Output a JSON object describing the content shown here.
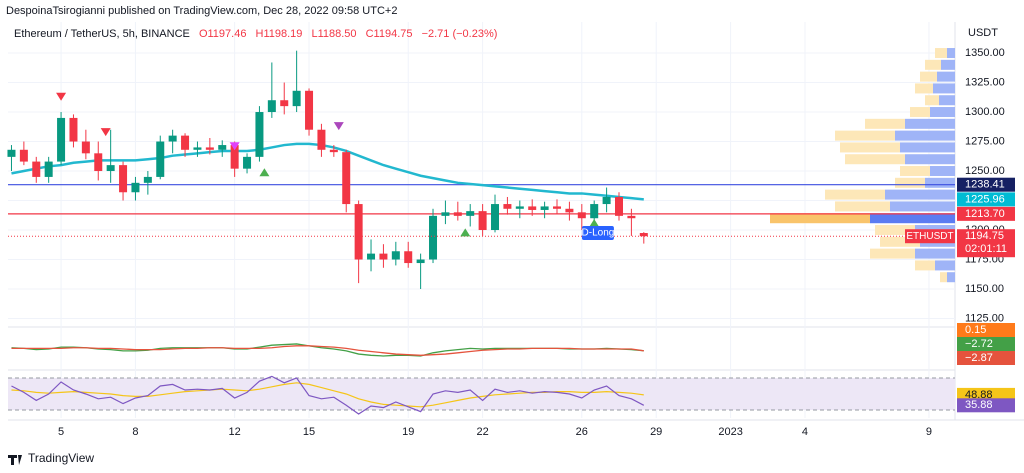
{
  "header": {
    "publisher": "DespoinaTsirogianni published on TradingView.com, Dec 28, 2022 09:58 UTC+2",
    "symbol": "Ethereum / TetherUS, 5h, BINANCE",
    "ohlc": [
      "O1197.46",
      "H1198.19",
      "L1188.50",
      "C1194.75",
      "−2.71 (−0.23%)"
    ],
    "currency": "USDT"
  },
  "footer": "TradingView",
  "chart_data": [
    {
      "type": "candlestick",
      "x": [
        3,
        3.5,
        4,
        4.5,
        5,
        5.5,
        6,
        6.5,
        7,
        7.5,
        8,
        8.5,
        9,
        9.5,
        10,
        10.5,
        11,
        11.5,
        12,
        12.5,
        13,
        13.5,
        14,
        14.5,
        15,
        15.5,
        16,
        16.5,
        17,
        17.5,
        18,
        18.5,
        19,
        19.5,
        20,
        20.5,
        21,
        21.5,
        22,
        22.5,
        23,
        23.5,
        24,
        24.5,
        25,
        25.5,
        26,
        26.5,
        27,
        27.5,
        28,
        28.5
      ],
      "open": [
        1262,
        1268,
        1258,
        1245,
        1258,
        1295,
        1275,
        1265,
        1250,
        1255,
        1232,
        1240,
        1245,
        1275,
        1280,
        1268,
        1270,
        1268,
        1272,
        1252,
        1262,
        1300,
        1310,
        1305,
        1318,
        1285,
        1268,
        1266,
        1222,
        1175,
        1180,
        1175,
        1182,
        1172,
        1175,
        1212,
        1215,
        1212,
        1216,
        1200,
        1222,
        1218,
        1220,
        1217,
        1220,
        1218,
        1215,
        1210,
        1222,
        1228,
        1212,
        1197.46
      ],
      "high": [
        1272,
        1275,
        1262,
        1262,
        1300,
        1298,
        1285,
        1275,
        1285,
        1258,
        1245,
        1250,
        1280,
        1285,
        1282,
        1275,
        1278,
        1276,
        1275,
        1265,
        1305,
        1342,
        1325,
        1352,
        1320,
        1290,
        1272,
        1268,
        1225,
        1192,
        1188,
        1190,
        1190,
        1180,
        1218,
        1225,
        1224,
        1222,
        1222,
        1230,
        1228,
        1225,
        1226,
        1224,
        1226,
        1224,
        1222,
        1225,
        1236,
        1232,
        1218,
        1198.19
      ],
      "low": [
        1250,
        1255,
        1240,
        1240,
        1255,
        1270,
        1260,
        1242,
        1240,
        1225,
        1225,
        1230,
        1243,
        1265,
        1262,
        1262,
        1264,
        1262,
        1245,
        1248,
        1258,
        1295,
        1298,
        1300,
        1280,
        1262,
        1262,
        1215,
        1155,
        1165,
        1168,
        1170,
        1168,
        1150,
        1172,
        1205,
        1208,
        1203,
        1195,
        1198,
        1213,
        1210,
        1212,
        1210,
        1214,
        1208,
        1200,
        1205,
        1215,
        1208,
        1195,
        1188.5
      ],
      "close": [
        1268,
        1258,
        1245,
        1258,
        1295,
        1275,
        1265,
        1250,
        1255,
        1232,
        1240,
        1245,
        1275,
        1280,
        1268,
        1270,
        1268,
        1272,
        1252,
        1262,
        1300,
        1310,
        1305,
        1318,
        1285,
        1268,
        1266,
        1222,
        1175,
        1180,
        1175,
        1182,
        1172,
        1175,
        1212,
        1215,
        1212,
        1216,
        1200,
        1222,
        1218,
        1220,
        1217,
        1220,
        1218,
        1215,
        1210,
        1222,
        1228,
        1212,
        1210,
        1194.75
      ],
      "up_color": "#089981",
      "down_color": "#f23645",
      "ema": {
        "color": "#22b8cf",
        "tag_color": "#00bcd4",
        "values": [
          1248,
          1250,
          1252,
          1254,
          1255,
          1257,
          1258,
          1259,
          1259,
          1259,
          1259,
          1260,
          1261,
          1263,
          1264,
          1265,
          1266,
          1267,
          1267,
          1267,
          1268,
          1270,
          1272,
          1273,
          1273,
          1272,
          1270,
          1267,
          1263,
          1259,
          1255,
          1252,
          1249,
          1246,
          1244,
          1242,
          1240,
          1239,
          1238,
          1237,
          1236,
          1235,
          1234,
          1233,
          1232,
          1231,
          1231,
          1230,
          1229,
          1228,
          1227,
          1225.96
        ]
      },
      "xlim": [
        2.86,
        41.05
      ],
      "xticks": [
        5,
        8,
        12,
        15,
        19,
        22,
        26,
        29,
        {
          "value": 32,
          "label": "2023"
        },
        {
          "value": 35,
          "label": "4"
        },
        {
          "value": 40,
          "label": "9"
        }
      ],
      "ylim": [
        1119.5,
        1376.3
      ],
      "yticks": [
        {
          "value": 1125,
          "label": "1125.00"
        },
        {
          "value": 1150,
          "label": "1150.00"
        },
        {
          "value": 1175,
          "label": "1175.00"
        },
        {
          "value": 1200,
          "label": "1200.00"
        },
        {
          "value": 1225,
          "label": "1225.00"
        },
        {
          "value": 1250,
          "label": "1250.00"
        },
        {
          "value": 1275,
          "label": "1275.00"
        },
        {
          "value": 1300,
          "label": "1300.00"
        },
        {
          "value": 1325,
          "label": "1325.00"
        },
        {
          "value": 1350,
          "label": "1350.00"
        }
      ],
      "grid": true,
      "levels": [
        {
          "value": 1238.41,
          "color": "#3d4fe0",
          "tag_color": "#152063"
        },
        {
          "value": 1213.7,
          "label": "1213.70",
          "color": "#f23645",
          "tag_color": "#f23645"
        }
      ],
      "last_price": {
        "symbol": "ETHUSDT",
        "countdown": "02:01:11",
        "color": "#f23645"
      },
      "signals": [
        {
          "x": 5,
          "y": 1313,
          "direction": "down",
          "color": "#f23645"
        },
        {
          "x": 6.8,
          "y": 1283,
          "direction": "down",
          "color": "#f23645"
        },
        {
          "x": 12,
          "y": 1271,
          "direction": "down",
          "color": "#e040fb"
        },
        {
          "x": 13.2,
          "y": 1249,
          "direction": "up",
          "color": "#4caf50"
        },
        {
          "x": 16.2,
          "y": 1288,
          "direction": "down",
          "color": "#ab47bc"
        },
        {
          "x": 21.3,
          "y": 1198,
          "direction": "up",
          "color": "#4caf50"
        },
        {
          "x": 26.5,
          "y": 1206,
          "direction": "up",
          "color": "#4caf50"
        }
      ],
      "annotation": {
        "text": "D-Long",
        "x": 26.65,
        "y": 1197.5
      },
      "volume_profile": {
        "prices": [
          1350,
          1340,
          1330,
          1320,
          1310,
          1300,
          1290,
          1280,
          1270,
          1260,
          1250,
          1240,
          1230,
          1220,
          1210,
          1200,
          1190,
          1180,
          1170,
          1160
        ],
        "up": [
          8,
          14,
          18,
          22,
          16,
          25,
          50,
          60,
          55,
          50,
          25,
          30,
          70,
          65,
          85,
          40,
          35,
          40,
          20,
          8
        ],
        "down": [
          12,
          16,
          17,
          18,
          14,
          20,
          40,
          60,
          60,
          60,
          30,
          30,
          60,
          55,
          100,
          40,
          40,
          45,
          20,
          7
        ],
        "xlim": [
          0,
          200
        ],
        "poc": 1210,
        "up_color": "#9fb4f7",
        "down_color": "#fde7b8",
        "poc_up_color": "#5c7cf2",
        "poc_down_color": "#f9c46b"
      }
    },
    {
      "type": "line",
      "ylim": [
        -30,
        30
      ],
      "histogram_last": 0.15,
      "histogram_color": "#ff7a1a",
      "series": [
        {
          "color": "#43a047",
          "last_label": "−2.72",
          "values": [
            2,
            1,
            -1,
            0,
            3,
            3,
            2,
            0,
            -1,
            -3,
            -3,
            -2,
            1,
            2,
            2,
            2,
            2,
            2,
            0,
            0,
            3,
            6,
            7,
            8,
            5,
            2,
            0,
            -3,
            -8,
            -10,
            -11,
            -10,
            -10,
            -11,
            -6,
            -3,
            -1,
            1,
            0,
            1,
            1,
            1,
            1,
            1,
            1,
            0,
            0,
            0,
            1,
            0,
            -1,
            -2.72
          ]
        },
        {
          "color": "#e5533d",
          "last_label": "−2.87",
          "values": [
            1,
            1,
            1,
            1,
            1,
            2,
            2,
            1,
            1,
            0,
            -1,
            -1,
            -1,
            0,
            1,
            1,
            2,
            2,
            1,
            1,
            1,
            2,
            4,
            5,
            5,
            4,
            3,
            1,
            -2,
            -4,
            -6,
            -8,
            -9,
            -10,
            -9,
            -8,
            -6,
            -4,
            -2,
            -1,
            0,
            0,
            1,
            1,
            1,
            1,
            0,
            0,
            0,
            0,
            0,
            -2.87
          ]
        }
      ]
    },
    {
      "type": "line",
      "ylim": [
        20,
        77.5
      ],
      "levels": [
        70,
        30
      ],
      "band_color": "#ede7f6",
      "series": [
        {
          "color": "#f5c518",
          "values": [
            55,
            54,
            52,
            51,
            52,
            53,
            52,
            51,
            50,
            48,
            47,
            47,
            49,
            51,
            53,
            54,
            55,
            56,
            55,
            54,
            56,
            59,
            62,
            64,
            62,
            58,
            54,
            50,
            44,
            40,
            37,
            36,
            35,
            34,
            36,
            39,
            42,
            45,
            47,
            49,
            50,
            51,
            52,
            52,
            53,
            53,
            52,
            52,
            53,
            52,
            51,
            48.88
          ]
        },
        {
          "color": "#7e57c2",
          "values": [
            60,
            52,
            42,
            50,
            65,
            55,
            50,
            44,
            46,
            38,
            45,
            48,
            60,
            62,
            55,
            56,
            55,
            57,
            45,
            52,
            66,
            72,
            64,
            70,
            48,
            44,
            46,
            36,
            25,
            35,
            33,
            40,
            34,
            28,
            50,
            54,
            52,
            55,
            42,
            56,
            52,
            54,
            51,
            53,
            52,
            50,
            45,
            55,
            60,
            48,
            44,
            35.88
          ]
        }
      ]
    }
  ]
}
